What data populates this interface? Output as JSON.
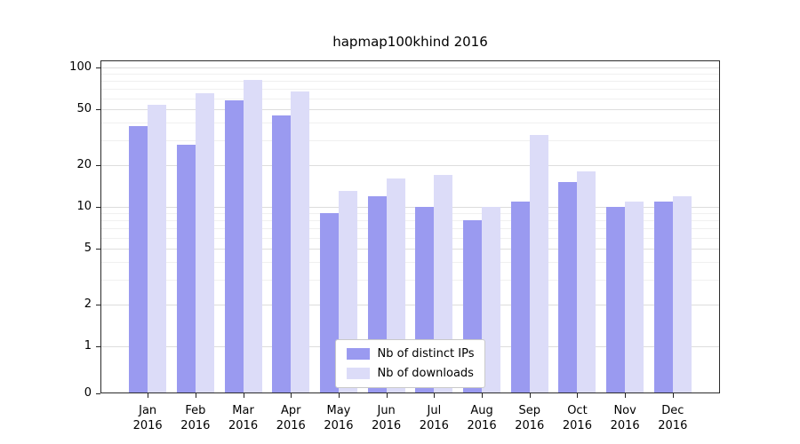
{
  "title": "hapmap100khind 2016",
  "chart_data": {
    "type": "bar",
    "categories": [
      "Jan",
      "Feb",
      "Mar",
      "Apr",
      "May",
      "Jun",
      "Jul",
      "Aug",
      "Sep",
      "Oct",
      "Nov",
      "Dec"
    ],
    "year": "2016",
    "series": [
      {
        "name": "Nb of distinct IPs",
        "color": "#9a9af0",
        "values": [
          38,
          28,
          58,
          45,
          9,
          12,
          10,
          8,
          11,
          15,
          10,
          11
        ]
      },
      {
        "name": "Nb of downloads",
        "color": "#dcdcf8",
        "values": [
          54,
          65,
          82,
          67,
          13,
          16,
          17,
          10,
          33,
          18,
          11,
          12
        ]
      }
    ],
    "yscale": "symlog",
    "yticks": [
      0,
      1,
      2,
      5,
      10,
      20,
      50,
      100
    ],
    "grid_minor": [
      3,
      4,
      6,
      7,
      8,
      9,
      30,
      40,
      60,
      70,
      80,
      90
    ],
    "ylim": [
      0,
      100
    ],
    "grid": true,
    "legend_position": "lower center"
  }
}
